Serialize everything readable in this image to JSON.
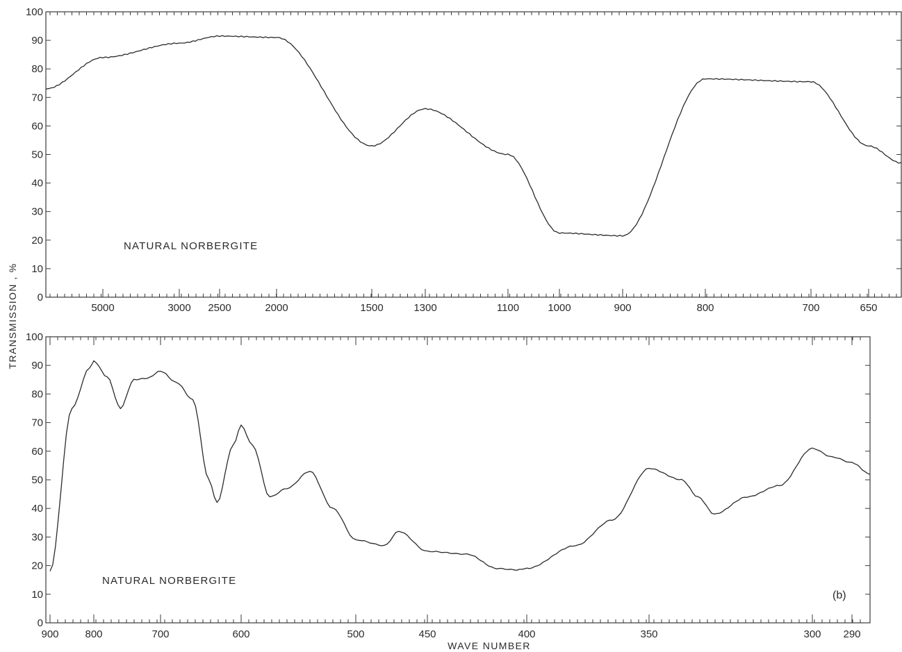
{
  "figure": {
    "ylabel": "TRANSMISSION , %",
    "xlabel": "WAVE NUMBER"
  },
  "chart_data": [
    {
      "type": "line",
      "panel": "top",
      "annotation": "NATURAL NORBERGITE",
      "tag": "",
      "ylim": [
        0,
        100
      ],
      "yticks": [
        0,
        10,
        20,
        30,
        40,
        50,
        60,
        70,
        80,
        90,
        100
      ],
      "x_tick_labels": [
        "5000",
        "3000",
        "2500",
        "2000",
        "1500",
        "1300",
        "1100",
        "1000",
        "900",
        "800",
        "700",
        "650"
      ],
      "x_axis_note": "nonlinear wave number scale, decreasing to the right",
      "series": [
        {
          "x": [
            "start",
            "5000",
            "3000",
            "2500",
            "2000",
            "1500",
            "1300",
            "1100",
            "1000",
            "900",
            "800",
            "700",
            "650",
            "end"
          ],
          "y": [
            73,
            84,
            89,
            91.5,
            91,
            53,
            66,
            50,
            22.5,
            21.5,
            76.5,
            75.5,
            53,
            47
          ]
        }
      ]
    },
    {
      "type": "line",
      "panel": "bottom",
      "annotation": "NATURAL NORBERGITE",
      "tag": "(b)",
      "ylim": [
        0,
        100
      ],
      "yticks": [
        0,
        10,
        20,
        30,
        40,
        50,
        60,
        70,
        80,
        90,
        100
      ],
      "x_tick_labels": [
        "900",
        "800",
        "700",
        "600",
        "500",
        "450",
        "400",
        "350",
        "300",
        "290"
      ],
      "x_axis_note": "wave number decreasing to the right",
      "series": [
        {
          "x": [
            900,
            850,
            810,
            800,
            780,
            760,
            740,
            720,
            700,
            680,
            660,
            640,
            630,
            610,
            600,
            590,
            575,
            560,
            540,
            520,
            500,
            480,
            470,
            450,
            430,
            415,
            405,
            400,
            380,
            365,
            350,
            340,
            335,
            330,
            320,
            310,
            300,
            295,
            290,
            285
          ],
          "y": [
            18,
            75,
            89,
            91.5,
            86,
            75,
            85,
            85.5,
            88,
            84,
            78,
            50,
            42,
            62,
            69,
            62,
            44,
            47,
            53,
            40,
            29,
            27,
            32,
            25,
            24,
            19,
            18.5,
            19,
            27,
            36,
            54,
            50,
            44,
            38,
            44,
            48,
            61,
            58,
            56,
            52
          ]
        }
      ]
    }
  ]
}
